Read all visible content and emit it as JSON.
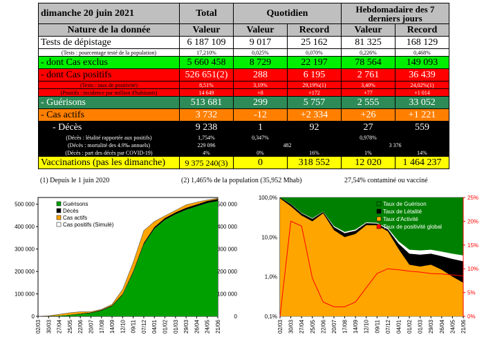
{
  "table": {
    "date": "dimanche 20 juin 2021",
    "total_header": "Total",
    "daily_header": "Quotidien",
    "weekly_header": "Hebdomadaire des 7 derniers jours",
    "nature_header": "Nature de la donnée",
    "value_header": "Valeur",
    "record_header": "Record",
    "rows": {
      "tests": {
        "label": "Tests de dépistage",
        "total": "6 187 109",
        "day": "9 017",
        "day_rec": "25 162",
        "week": "81 325",
        "week_rec": "168 129"
      },
      "tests_sub": {
        "label": "(Tests : pourcentage testé de la population)",
        "total": "17,210%",
        "day": "0,025%",
        "day_rec": "0,070%",
        "week": "0,226%",
        "week_rec": "0,468%"
      },
      "excl": {
        "label": "- dont Cas exclus",
        "total": "5 660 458",
        "day": "8 729",
        "day_rec": "22 197",
        "week": "78 564",
        "week_rec": "149 093"
      },
      "pos": {
        "label": "- dont Cas positifs",
        "total": "526 651(2)",
        "day": "288",
        "day_rec": "6 195",
        "week": "2 761",
        "week_rec": "36 439"
      },
      "pos_sub1": {
        "label": "(Tests : taux de positivité)",
        "total": "8,51%",
        "day": "3,19%",
        "day_rec": "29,19%(1)",
        "week": "3,40%",
        "week_rec": "24,02%(1)"
      },
      "pos_sub2": {
        "label": "(Positifs : incidence par million d'habitants)",
        "total": "14 649",
        "day": "+8",
        "day_rec": "+172",
        "week": "+77",
        "week_rec": "+1 014"
      },
      "guer": {
        "label": "- Guérisons",
        "total": "513 681",
        "day": "299",
        "day_rec": "5 757",
        "week": "2 555",
        "week_rec": "33 052"
      },
      "actifs": {
        "label": "- Cas actifs",
        "total": "3 732",
        "day": "-12",
        "day_rec": "+2 334",
        "week": "+26",
        "week_rec": "+1 221"
      },
      "deces": {
        "label": "- Décès",
        "total": "9 238",
        "day": "1",
        "day_rec": "92",
        "week": "27",
        "week_rec": "559"
      },
      "deces_sub1": {
        "label": "(Décès : létalité rapportée aux positifs)",
        "total": "1,754%",
        "day": "0,347%",
        "week": "0,978%"
      },
      "deces_sub2": {
        "label": "(Décès : mortalité des 4.9‰ annuels)",
        "total": "229 096",
        "day_mid": "482",
        "week_mid": "3 376"
      },
      "deces_sub3": {
        "label": "(Décès : part des décès par COVID-19)",
        "total": "4%",
        "day": "0%",
        "day_rec": "16%",
        "week": "1%",
        "week_rec": "14%"
      },
      "vacc": {
        "label": "Vaccinations (pas les dimanche)",
        "total": "9 375 240(3)",
        "day": "0",
        "day_rec": "318 552",
        "week": "12 020",
        "week_rec": "1 464 237"
      }
    },
    "footnotes": {
      "f1": "(1) Depuis le 1 juin 2020",
      "f2": "(2) 1,465% de la population (35,952 Mhab)",
      "f3": "27,54% contaminé ou vacciné"
    }
  },
  "chart_data": [
    {
      "type": "area",
      "title": "",
      "x_ticks": [
        "02/03",
        "30/03",
        "27/04",
        "25/05",
        "22/06",
        "20/07",
        "17/08",
        "14/09",
        "12/10",
        "09/11",
        "07/12",
        "04/01",
        "01/02",
        "01/03",
        "29/03",
        "26/04",
        "24/05",
        "21/06"
      ],
      "y_ticks": [
        "0",
        "100 000",
        "200 000",
        "300 000",
        "400 000",
        "500 000"
      ],
      "ylim": [
        0,
        530000
      ],
      "legend_position": "top-left",
      "legend": [
        "Guérisons",
        "Décès",
        "Cas actifs",
        "Cas positifs (Simulé)"
      ],
      "colors": {
        "guerisons": "#00a000",
        "deces": "#000000",
        "actifs": "#ffa500",
        "simule": "#ffffff"
      },
      "series": [
        {
          "name": "Guérisons",
          "values": [
            0,
            0,
            2000,
            5000,
            10000,
            14000,
            25000,
            45000,
            95000,
            195000,
            320000,
            390000,
            430000,
            455000,
            475000,
            490000,
            505000,
            513681
          ]
        },
        {
          "name": "Décès",
          "values": [
            0,
            200,
            800,
            1500,
            2100,
            2700,
            3100,
            3600,
            4500,
            5800,
            7100,
            7800,
            8200,
            8500,
            8700,
            8900,
            9100,
            9238
          ]
        },
        {
          "name": "Cas actifs",
          "values": [
            0,
            2000,
            6000,
            9000,
            8000,
            4000,
            3000,
            5000,
            20000,
            40000,
            55000,
            25000,
            10000,
            9000,
            14000,
            10000,
            5000,
            3732
          ]
        }
      ]
    },
    {
      "type": "area",
      "title": "",
      "x_ticks": [
        "02/03",
        "30/03",
        "27/04",
        "25/05",
        "22/06",
        "20/07",
        "17/08",
        "14/09",
        "12/10",
        "09/11",
        "07/12",
        "04/01",
        "01/02",
        "01/03",
        "29/03",
        "26/04",
        "24/05",
        "21/06"
      ],
      "y_ticks_left": [
        "0,1%",
        "1,0%",
        "10,0%",
        "100,0%"
      ],
      "y_ticks_right": [
        "0%",
        "5%",
        "10%",
        "15%",
        "20%",
        "25%"
      ],
      "y_scale_left": "log",
      "ylim_left": [
        0.1,
        100
      ],
      "ylim_right": [
        0,
        25
      ],
      "legend_position": "top-right",
      "legend": [
        "Taux de Guérison",
        "Taux de Létalité",
        "Taux d'Activité",
        "Taux de positivité global"
      ],
      "colors": {
        "guerison": "#008000",
        "letalite": "#000000",
        "activite": "#ffa500",
        "positivite": "#ff0000"
      },
      "series": [
        {
          "name": "Taux de Guérison",
          "values": [
            0.1,
            30,
            60,
            70,
            55,
            80,
            85,
            85,
            80,
            75,
            80,
            88,
            94,
            95,
            95,
            96,
            97,
            98
          ]
        },
        {
          "name": "Taux de Létalité",
          "values": [
            5,
            8,
            5,
            4,
            3,
            3,
            2.5,
            2.5,
            2.5,
            2,
            1.8,
            1.8,
            1.8,
            1.8,
            1.8,
            1.8,
            1.8,
            1.75
          ]
        },
        {
          "name": "Taux d'Activité",
          "values": [
            95,
            60,
            35,
            25,
            40,
            15,
            10,
            12,
            20,
            20,
            14,
            5,
            2,
            1.8,
            2,
            1.5,
            1,
            0.7
          ]
        },
        {
          "name": "Taux de positivité global",
          "values": [
            0,
            20,
            19,
            8,
            3,
            2,
            2,
            3,
            6,
            9,
            10,
            9.8,
            9.5,
            9.3,
            9,
            8.9,
            8.7,
            8.51
          ]
        }
      ]
    }
  ]
}
